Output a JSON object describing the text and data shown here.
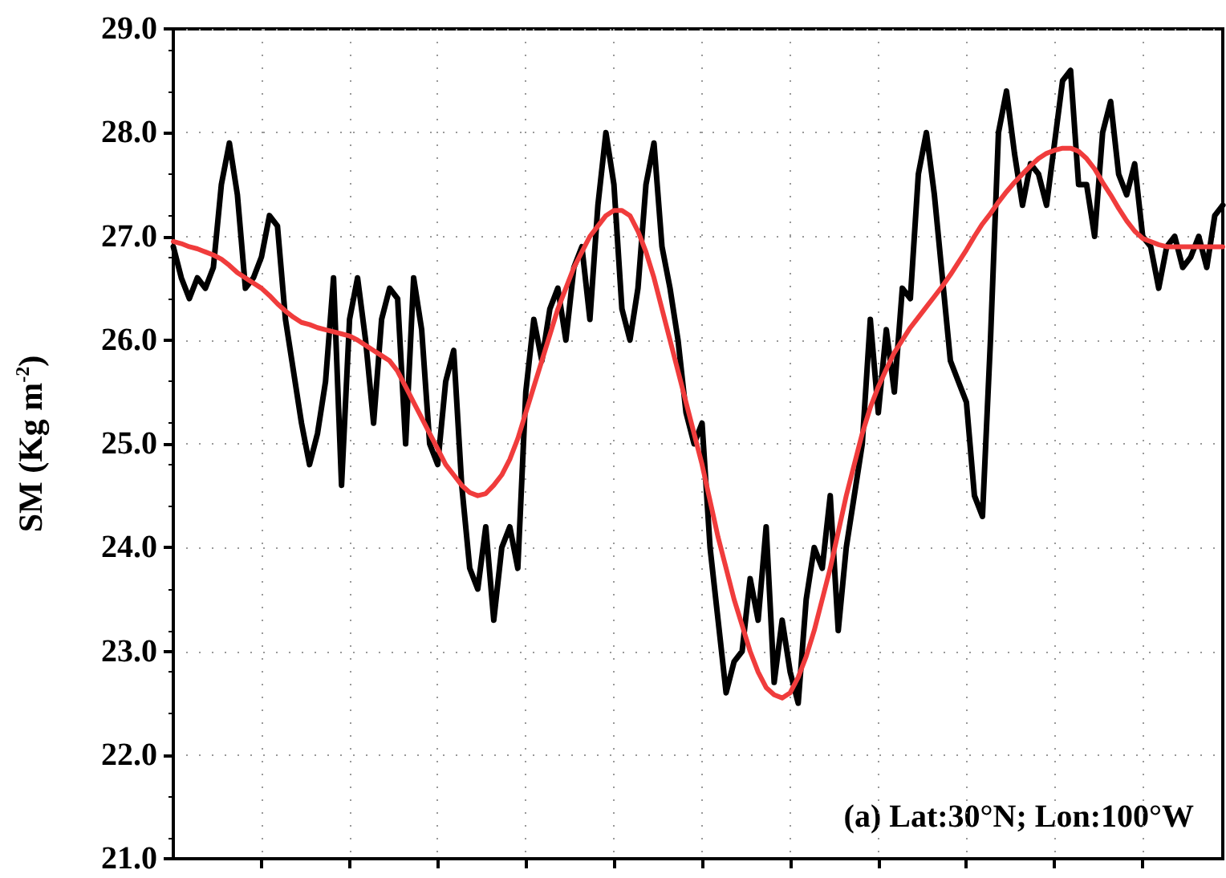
{
  "chart_data": {
    "type": "line",
    "ylabel": "SM (Kg m$^{-2}$)",
    "annotations": [
      "(a) Lat:30°N; Lon:100°W"
    ],
    "categories": [
      null,
      null,
      null,
      null,
      null,
      null,
      null,
      null,
      null,
      null,
      null,
      null,
      null,
      null,
      null,
      null,
      null,
      null,
      null,
      null,
      null,
      null,
      null,
      null,
      null,
      null,
      null,
      null,
      null,
      null,
      null,
      null,
      null,
      null,
      null,
      null,
      null,
      null,
      null,
      null,
      null,
      null,
      null,
      null,
      null,
      null,
      null,
      null,
      null,
      null,
      null,
      null,
      null,
      null,
      null,
      null,
      null,
      null,
      null,
      null,
      null,
      null,
      null,
      null,
      null,
      null,
      null,
      null,
      null,
      null,
      null,
      null,
      null,
      null,
      null,
      null,
      null,
      null,
      null,
      null,
      null,
      null,
      null,
      null,
      null,
      null,
      null,
      null,
      null,
      null,
      null,
      null,
      null,
      null,
      null,
      null,
      null,
      null,
      null,
      null,
      null,
      null,
      null,
      null,
      null,
      null,
      null,
      null,
      null,
      null,
      null,
      null,
      null,
      null,
      null,
      null,
      null,
      null,
      null,
      null,
      null,
      null,
      null,
      null,
      null,
      null,
      null,
      null,
      null,
      null,
      null,
      null
    ],
    "series": [
      {
        "color": "#000000",
        "values": [
          26.9,
          26.6,
          26.4,
          26.6,
          26.5,
          26.7,
          27.5,
          27.9,
          27.4,
          26.5,
          26.6,
          26.8,
          27.2,
          27.1,
          26.2,
          25.7,
          25.2,
          24.8,
          25.1,
          25.6,
          26.6,
          24.6,
          26.2,
          26.6,
          26.0,
          25.2,
          26.2,
          26.5,
          26.4,
          25.0,
          26.6,
          26.1,
          25.0,
          24.8,
          25.6,
          25.9,
          24.6,
          23.8,
          23.6,
          24.2,
          23.3,
          24.0,
          24.2,
          23.8,
          25.5,
          26.2,
          25.8,
          26.3,
          26.5,
          26.0,
          26.7,
          26.9,
          26.2,
          27.3,
          28.0,
          27.5,
          26.3,
          26.0,
          26.5,
          27.5,
          27.9,
          26.9,
          26.5,
          26.0,
          25.3,
          25.0,
          25.2,
          24.0,
          23.3,
          22.6,
          22.9,
          23.0,
          23.7,
          23.3,
          24.2,
          22.7,
          23.3,
          22.8,
          22.5,
          23.5,
          24.0,
          23.8,
          24.5,
          23.2,
          24.0,
          24.5,
          25.0,
          26.2,
          25.3,
          26.1,
          25.5,
          26.5,
          26.4,
          27.6,
          28.0,
          27.4,
          26.6,
          25.8,
          25.6,
          25.4,
          24.5,
          24.3,
          26.0,
          28.0,
          28.4,
          27.8,
          27.3,
          27.7,
          27.6,
          27.3,
          27.9,
          28.5,
          28.6,
          27.5,
          27.5,
          27.0,
          28.0,
          28.3,
          27.6,
          27.4,
          27.7,
          27.0,
          26.9,
          26.5,
          26.9,
          27.0,
          26.7,
          26.8,
          27.0,
          26.7,
          27.2,
          27.3
        ]
      },
      {
        "color": "#f03c3c",
        "values": [
          26.95,
          26.93,
          26.9,
          26.88,
          26.85,
          26.82,
          26.78,
          26.72,
          26.65,
          26.6,
          26.55,
          26.5,
          26.43,
          26.35,
          26.28,
          26.22,
          26.17,
          26.15,
          26.12,
          26.1,
          26.08,
          26.06,
          26.04,
          26.0,
          25.95,
          25.9,
          25.85,
          25.8,
          25.7,
          25.55,
          25.4,
          25.25,
          25.1,
          24.95,
          24.8,
          24.7,
          24.6,
          24.53,
          24.5,
          24.52,
          24.6,
          24.7,
          24.85,
          25.05,
          25.3,
          25.55,
          25.8,
          26.05,
          26.3,
          26.5,
          26.7,
          26.85,
          27.0,
          27.1,
          27.2,
          27.25,
          27.25,
          27.2,
          27.05,
          26.85,
          26.6,
          26.3,
          26.0,
          25.7,
          25.4,
          25.1,
          24.8,
          24.45,
          24.1,
          23.8,
          23.5,
          23.25,
          23.0,
          22.8,
          22.65,
          22.58,
          22.55,
          22.6,
          22.75,
          22.95,
          23.2,
          23.5,
          23.8,
          24.15,
          24.5,
          24.8,
          25.1,
          25.35,
          25.55,
          25.72,
          25.88,
          26.0,
          26.12,
          26.22,
          26.32,
          26.42,
          26.52,
          26.63,
          26.75,
          26.87,
          27.0,
          27.12,
          27.22,
          27.33,
          27.43,
          27.52,
          27.6,
          27.68,
          27.75,
          27.8,
          27.83,
          27.85,
          27.85,
          27.82,
          27.75,
          27.65,
          27.52,
          27.4,
          27.27,
          27.15,
          27.05,
          26.98,
          26.95,
          26.92,
          26.9,
          26.9,
          26.9,
          26.9,
          26.9,
          26.9,
          26.9,
          26.9
        ]
      }
    ],
    "ylim": [
      21,
      29
    ],
    "yticks": [
      {
        "value": 21,
        "label": "21.0"
      },
      {
        "value": 22,
        "label": "22.0"
      },
      {
        "value": 23,
        "label": "23.0"
      },
      {
        "value": 24,
        "label": "24.0"
      },
      {
        "value": 25,
        "label": "25.0"
      },
      {
        "value": 26,
        "label": "26.0"
      },
      {
        "value": 27,
        "label": "27.0"
      },
      {
        "value": 28,
        "label": "28.0"
      },
      {
        "value": 29,
        "label": "29.0"
      }
    ],
    "grid": true,
    "tick_labels": "y",
    "line_style": "solid"
  }
}
